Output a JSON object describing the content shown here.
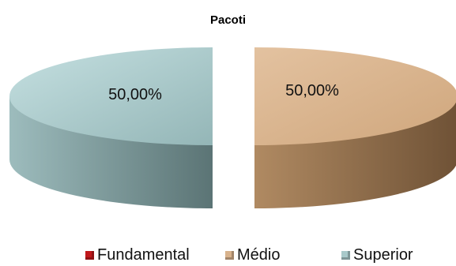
{
  "chart_data": {
    "type": "pie",
    "title": "Pacoti",
    "categories": [
      "Fundamental",
      "Médio",
      "Superior"
    ],
    "values": [
      0,
      50,
      50
    ],
    "data_labels": [
      "",
      "50,00%",
      "50,00%"
    ],
    "colors": [
      "#c0181b",
      "#d8b28c",
      "#a8c9ca"
    ],
    "style": "3d-exploded",
    "legend_position": "bottom"
  }
}
